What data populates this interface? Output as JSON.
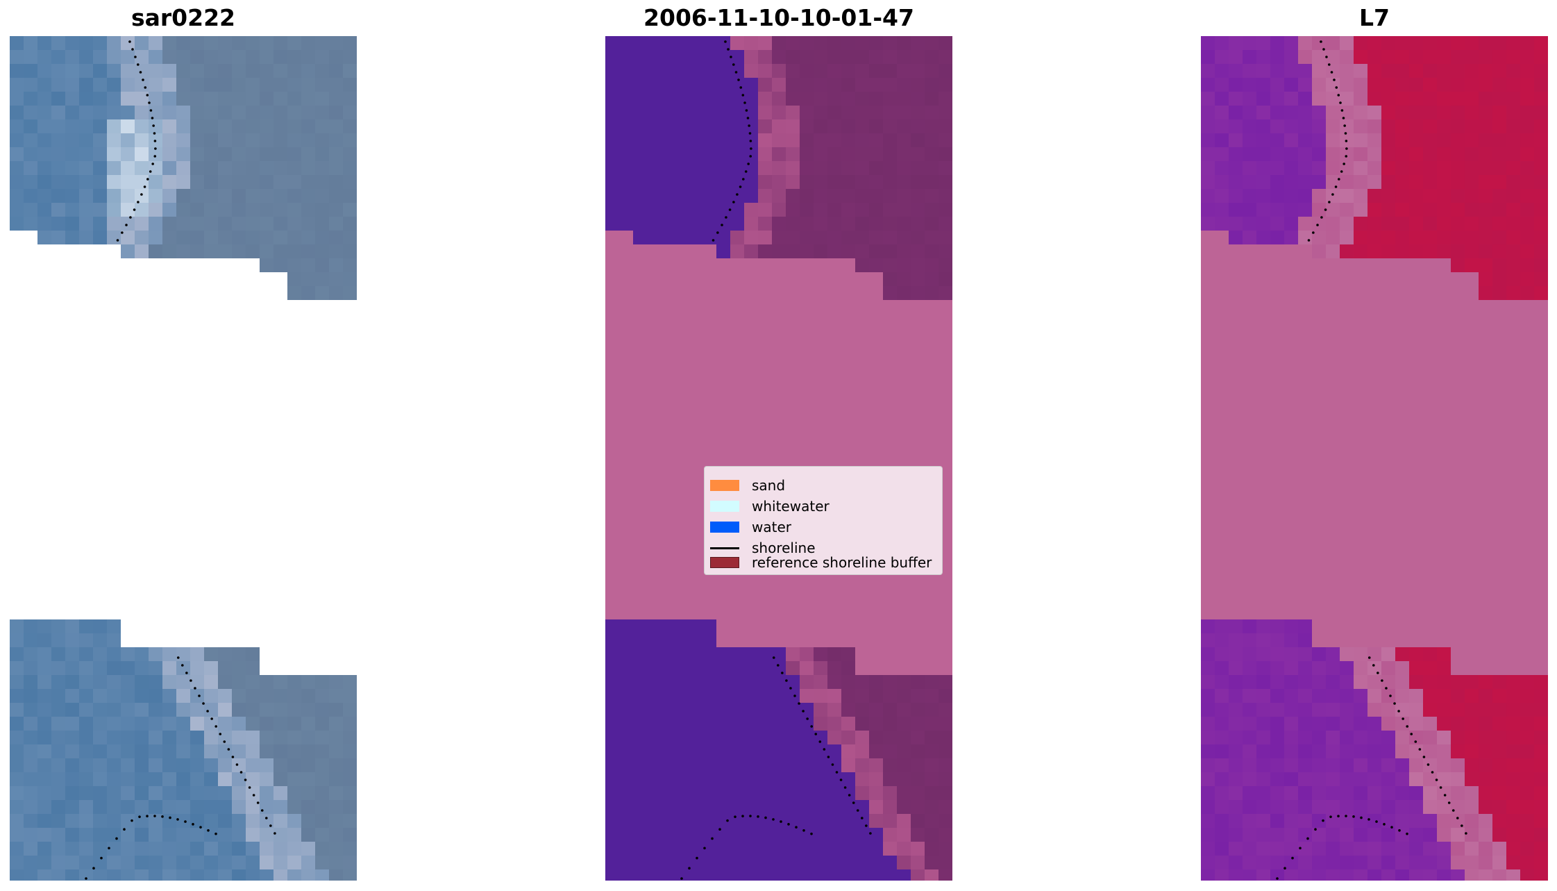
{
  "panels": [
    {
      "title": "sar0222",
      "view": "rgb"
    },
    {
      "title": "2006-11-10-10-01-47",
      "view": "classified"
    },
    {
      "title": "L7",
      "view": "mndwi"
    }
  ],
  "legend": {
    "items": [
      {
        "label": "sand",
        "color": "#ff8c3f"
      },
      {
        "label": "whitewater",
        "color": "#d2fcff"
      },
      {
        "label": "water",
        "color": "#005cfa"
      },
      {
        "label": "shoreline",
        "color": "#000000"
      },
      {
        "label": "reference shoreline buffer",
        "color": "#9c2b36"
      }
    ]
  },
  "colors": {
    "nodata": "#bd6496",
    "classified_water": "#53219a",
    "classified_land": "#7a2f6e",
    "rgb_water": "#4d7aa6",
    "rgb_land": "#6983a0",
    "rgb_whitewater": "#e6eef8",
    "mndwi_water": "#7a22a6",
    "mndwi_land": "#c21448",
    "shoreline_dots": "#000000"
  }
}
